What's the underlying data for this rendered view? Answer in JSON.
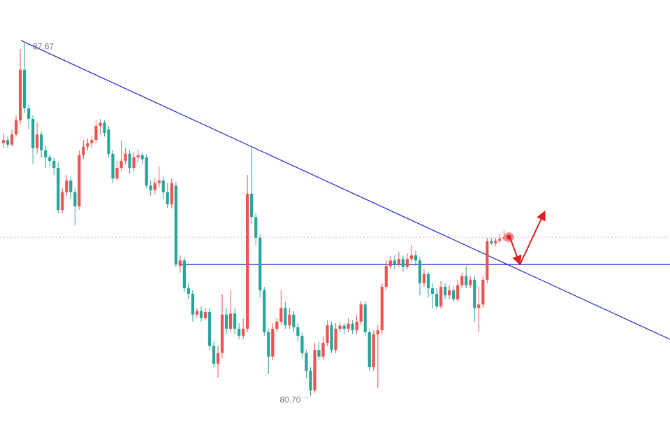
{
  "chart_data": {
    "type": "candlestick",
    "up_color": "#ef5350",
    "down_color": "#26a69a",
    "xlim": [
      -0.83,
      158.47
    ],
    "ylim": [
      79.83,
      88.53
    ],
    "high_label": "87.67",
    "low_label": "80.70",
    "price_line": {
      "value": 83.84,
      "color": "#f4a6a6"
    },
    "lines": [
      {
        "points": [
          [
            4.15,
            87.73
          ],
          [
            158.47,
            81.82
          ]
        ],
        "color": "#2323d6"
      },
      {
        "points": [
          [
            42,
            83.3
          ],
          [
            158.47,
            83.3
          ]
        ],
        "color": "#2323d6"
      }
    ],
    "arrow": {
      "points": [
        [
          120.3,
          83.86
        ],
        [
          122.8,
          83.3
        ],
        [
          128.7,
          84.35
        ]
      ],
      "color": "#e0201f"
    },
    "ohlc": [
      [
        85.7,
        85.9,
        85.6,
        85.76
      ],
      [
        85.76,
        85.83,
        85.6,
        85.67
      ],
      [
        85.67,
        85.97,
        85.63,
        85.87
      ],
      [
        85.87,
        86.25,
        85.83,
        86.15
      ],
      [
        86.15,
        87.56,
        86.07,
        87.15
      ],
      [
        87.15,
        87.67,
        86.29,
        86.39
      ],
      [
        86.39,
        86.46,
        85.97,
        86.18
      ],
      [
        86.18,
        86.25,
        85.28,
        85.6
      ],
      [
        85.6,
        86.11,
        85.49,
        85.87
      ],
      [
        85.87,
        85.93,
        85.42,
        85.56
      ],
      [
        85.56,
        85.65,
        85.21,
        85.42
      ],
      [
        85.42,
        85.49,
        85.24,
        85.35
      ],
      [
        85.35,
        85.42,
        85.07,
        85.21
      ],
      [
        85.21,
        85.32,
        84.31,
        84.38
      ],
      [
        84.38,
        84.82,
        84.31,
        84.73
      ],
      [
        84.73,
        85.07,
        84.66,
        84.96
      ],
      [
        84.96,
        85.04,
        84.59,
        84.73
      ],
      [
        84.73,
        84.82,
        84.08,
        84.45
      ],
      [
        84.45,
        85.56,
        84.38,
        85.46
      ],
      [
        85.46,
        85.76,
        85.38,
        85.63
      ],
      [
        85.63,
        85.79,
        85.56,
        85.7
      ],
      [
        85.7,
        85.83,
        85.6,
        85.76
      ],
      [
        85.76,
        86.15,
        85.7,
        86.04
      ],
      [
        86.04,
        86.18,
        85.87,
        86.1
      ],
      [
        86.1,
        86.15,
        85.83,
        85.9
      ],
      [
        85.97,
        86.04,
        85.42,
        85.49
      ],
      [
        85.49,
        85.56,
        84.91,
        85.0
      ],
      [
        85.0,
        85.35,
        84.96,
        85.21
      ],
      [
        85.21,
        85.76,
        85.14,
        85.35
      ],
      [
        85.35,
        85.6,
        85.28,
        85.49
      ],
      [
        85.49,
        85.56,
        85.1,
        85.21
      ],
      [
        85.21,
        85.52,
        85.14,
        85.42
      ],
      [
        85.42,
        85.56,
        85.32,
        85.46
      ],
      [
        85.46,
        85.52,
        85.28,
        85.38
      ],
      [
        85.42,
        85.49,
        84.8,
        84.86
      ],
      [
        84.86,
        84.96,
        84.66,
        84.77
      ],
      [
        84.77,
        85.0,
        84.69,
        84.91
      ],
      [
        84.91,
        85.24,
        84.82,
        84.96
      ],
      [
        84.96,
        85.04,
        84.59,
        84.73
      ],
      [
        84.73,
        84.91,
        84.41,
        84.49
      ],
      [
        84.49,
        85.0,
        84.41,
        84.91
      ],
      [
        84.86,
        84.93,
        83.25,
        83.3
      ],
      [
        83.27,
        83.48,
        83.14,
        83.38
      ],
      [
        83.38,
        83.44,
        82.75,
        82.83
      ],
      [
        82.83,
        82.93,
        82.61,
        82.72
      ],
      [
        82.72,
        82.79,
        82.17,
        82.31
      ],
      [
        82.31,
        82.44,
        82.24,
        82.38
      ],
      [
        82.38,
        82.47,
        82.17,
        82.24
      ],
      [
        82.24,
        82.44,
        82.2,
        82.36
      ],
      [
        82.36,
        82.44,
        81.61,
        81.69
      ],
      [
        81.69,
        81.78,
        81.27,
        81.34
      ],
      [
        81.34,
        81.69,
        81.06,
        81.55
      ],
      [
        81.55,
        82.72,
        81.45,
        82.31
      ],
      [
        82.31,
        82.44,
        81.92,
        82.03
      ],
      [
        82.03,
        82.79,
        81.96,
        82.33
      ],
      [
        82.33,
        82.44,
        81.92,
        82.03
      ],
      [
        82.03,
        82.14,
        81.82,
        81.89
      ],
      [
        81.89,
        82.24,
        81.82,
        82.03
      ],
      [
        82.03,
        85.07,
        81.96,
        84.7
      ],
      [
        84.7,
        85.6,
        84.1,
        84.24
      ],
      [
        84.24,
        84.31,
        83.69,
        83.83
      ],
      [
        83.83,
        83.9,
        82.65,
        82.79
      ],
      [
        82.79,
        82.86,
        81.89,
        81.96
      ],
      [
        81.96,
        82.03,
        81.13,
        81.48
      ],
      [
        81.48,
        82.14,
        81.41,
        82.03
      ],
      [
        82.03,
        82.24,
        81.96,
        82.17
      ],
      [
        82.17,
        82.79,
        82.1,
        82.44
      ],
      [
        82.44,
        82.56,
        82.03,
        82.1
      ],
      [
        82.1,
        82.44,
        82.03,
        82.31
      ],
      [
        82.31,
        82.38,
        81.96,
        82.06
      ],
      [
        82.06,
        82.14,
        81.78,
        81.89
      ],
      [
        81.89,
        81.96,
        81.45,
        81.55
      ],
      [
        81.55,
        81.61,
        81.06,
        81.2
      ],
      [
        81.2,
        81.27,
        80.7,
        80.81
      ],
      [
        80.81,
        81.75,
        80.76,
        81.61
      ],
      [
        81.61,
        81.78,
        81.41,
        81.48
      ],
      [
        81.48,
        81.89,
        81.41,
        81.75
      ],
      [
        81.75,
        82.2,
        81.69,
        82.1
      ],
      [
        82.1,
        82.17,
        81.55,
        81.61
      ],
      [
        81.61,
        82.14,
        81.55,
        82.03
      ],
      [
        82.03,
        82.17,
        81.96,
        82.09
      ],
      [
        82.09,
        82.14,
        81.92,
        82.03
      ],
      [
        82.03,
        82.24,
        81.96,
        82.13
      ],
      [
        82.13,
        82.2,
        81.92,
        82.0
      ],
      [
        82.0,
        82.31,
        81.92,
        82.17
      ],
      [
        82.17,
        82.58,
        82.1,
        82.51
      ],
      [
        82.51,
        82.58,
        81.89,
        81.96
      ],
      [
        81.96,
        82.03,
        81.2,
        81.27
      ],
      [
        81.27,
        82.0,
        81.2,
        81.92
      ],
      [
        81.92,
        82.1,
        80.85,
        82.0
      ],
      [
        82.0,
        82.93,
        81.92,
        82.86
      ],
      [
        82.86,
        83.38,
        82.79,
        83.27
      ],
      [
        83.27,
        83.47,
        83.21,
        83.38
      ],
      [
        83.38,
        83.48,
        83.21,
        83.3
      ],
      [
        83.3,
        83.55,
        83.25,
        83.41
      ],
      [
        83.41,
        83.48,
        83.16,
        83.25
      ],
      [
        83.25,
        83.52,
        83.21,
        83.41
      ],
      [
        83.41,
        83.69,
        83.34,
        83.48
      ],
      [
        83.48,
        83.58,
        83.27,
        83.38
      ],
      [
        83.38,
        83.44,
        82.69,
        82.93
      ],
      [
        82.93,
        83.21,
        82.86,
        83.11
      ],
      [
        83.11,
        83.16,
        82.65,
        82.83
      ],
      [
        82.83,
        82.93,
        82.44,
        82.72
      ],
      [
        82.72,
        82.83,
        82.42,
        82.47
      ],
      [
        82.47,
        82.97,
        82.42,
        82.86
      ],
      [
        82.86,
        82.93,
        82.61,
        82.69
      ],
      [
        82.69,
        82.89,
        82.61,
        82.79
      ],
      [
        82.79,
        82.86,
        82.56,
        82.61
      ],
      [
        82.61,
        83.0,
        82.56,
        82.89
      ],
      [
        82.89,
        83.14,
        82.83,
        83.07
      ],
      [
        83.07,
        83.27,
        82.83,
        82.89
      ],
      [
        82.89,
        83.07,
        82.83,
        83.0
      ],
      [
        83.0,
        83.07,
        82.17,
        82.44
      ],
      [
        82.44,
        82.86,
        81.96,
        82.51
      ],
      [
        82.51,
        83.07,
        82.44,
        83.0
      ],
      [
        83.0,
        83.83,
        82.93,
        83.76
      ],
      [
        83.76,
        83.83,
        83.69,
        83.72
      ],
      [
        83.72,
        83.83,
        83.66,
        83.77
      ],
      [
        83.77,
        83.9,
        83.72,
        83.81
      ],
      [
        83.81,
        83.97,
        83.76,
        83.84
      ]
    ]
  }
}
